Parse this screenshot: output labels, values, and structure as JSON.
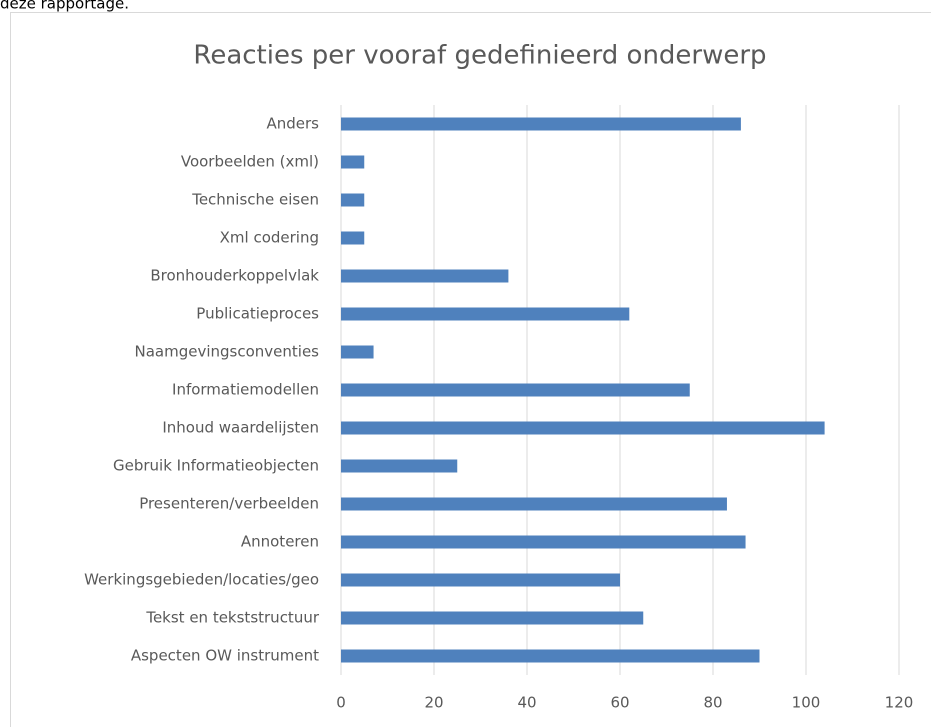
{
  "page_text": "deze rapportage.",
  "chart_data": {
    "type": "barh",
    "title": "Reacties per vooraf gedefinieerd onderwerp",
    "categories": [
      "Anders",
      "Voorbeelden (xml)",
      "Technische eisen",
      "Xml codering",
      "Bronhouderkoppelvlak",
      "Publicatieproces",
      "Naamgevingsconventies",
      "Informatiemodellen",
      "Inhoud waardelijsten",
      "Gebruik Informatieobjecten",
      "Presenteren/verbeelden",
      "Annoteren",
      "Werkingsgebieden/locaties/geo",
      "Tekst en tekststructuur",
      "Aspecten OW instrument"
    ],
    "values": [
      86,
      5,
      5,
      5,
      36,
      62,
      7,
      75,
      104,
      25,
      83,
      87,
      60,
      65,
      90
    ],
    "color": "#4f81bd",
    "xlim": [
      0,
      120
    ],
    "xticks": [
      0,
      20,
      40,
      60,
      80,
      100,
      120
    ],
    "grid": true
  }
}
